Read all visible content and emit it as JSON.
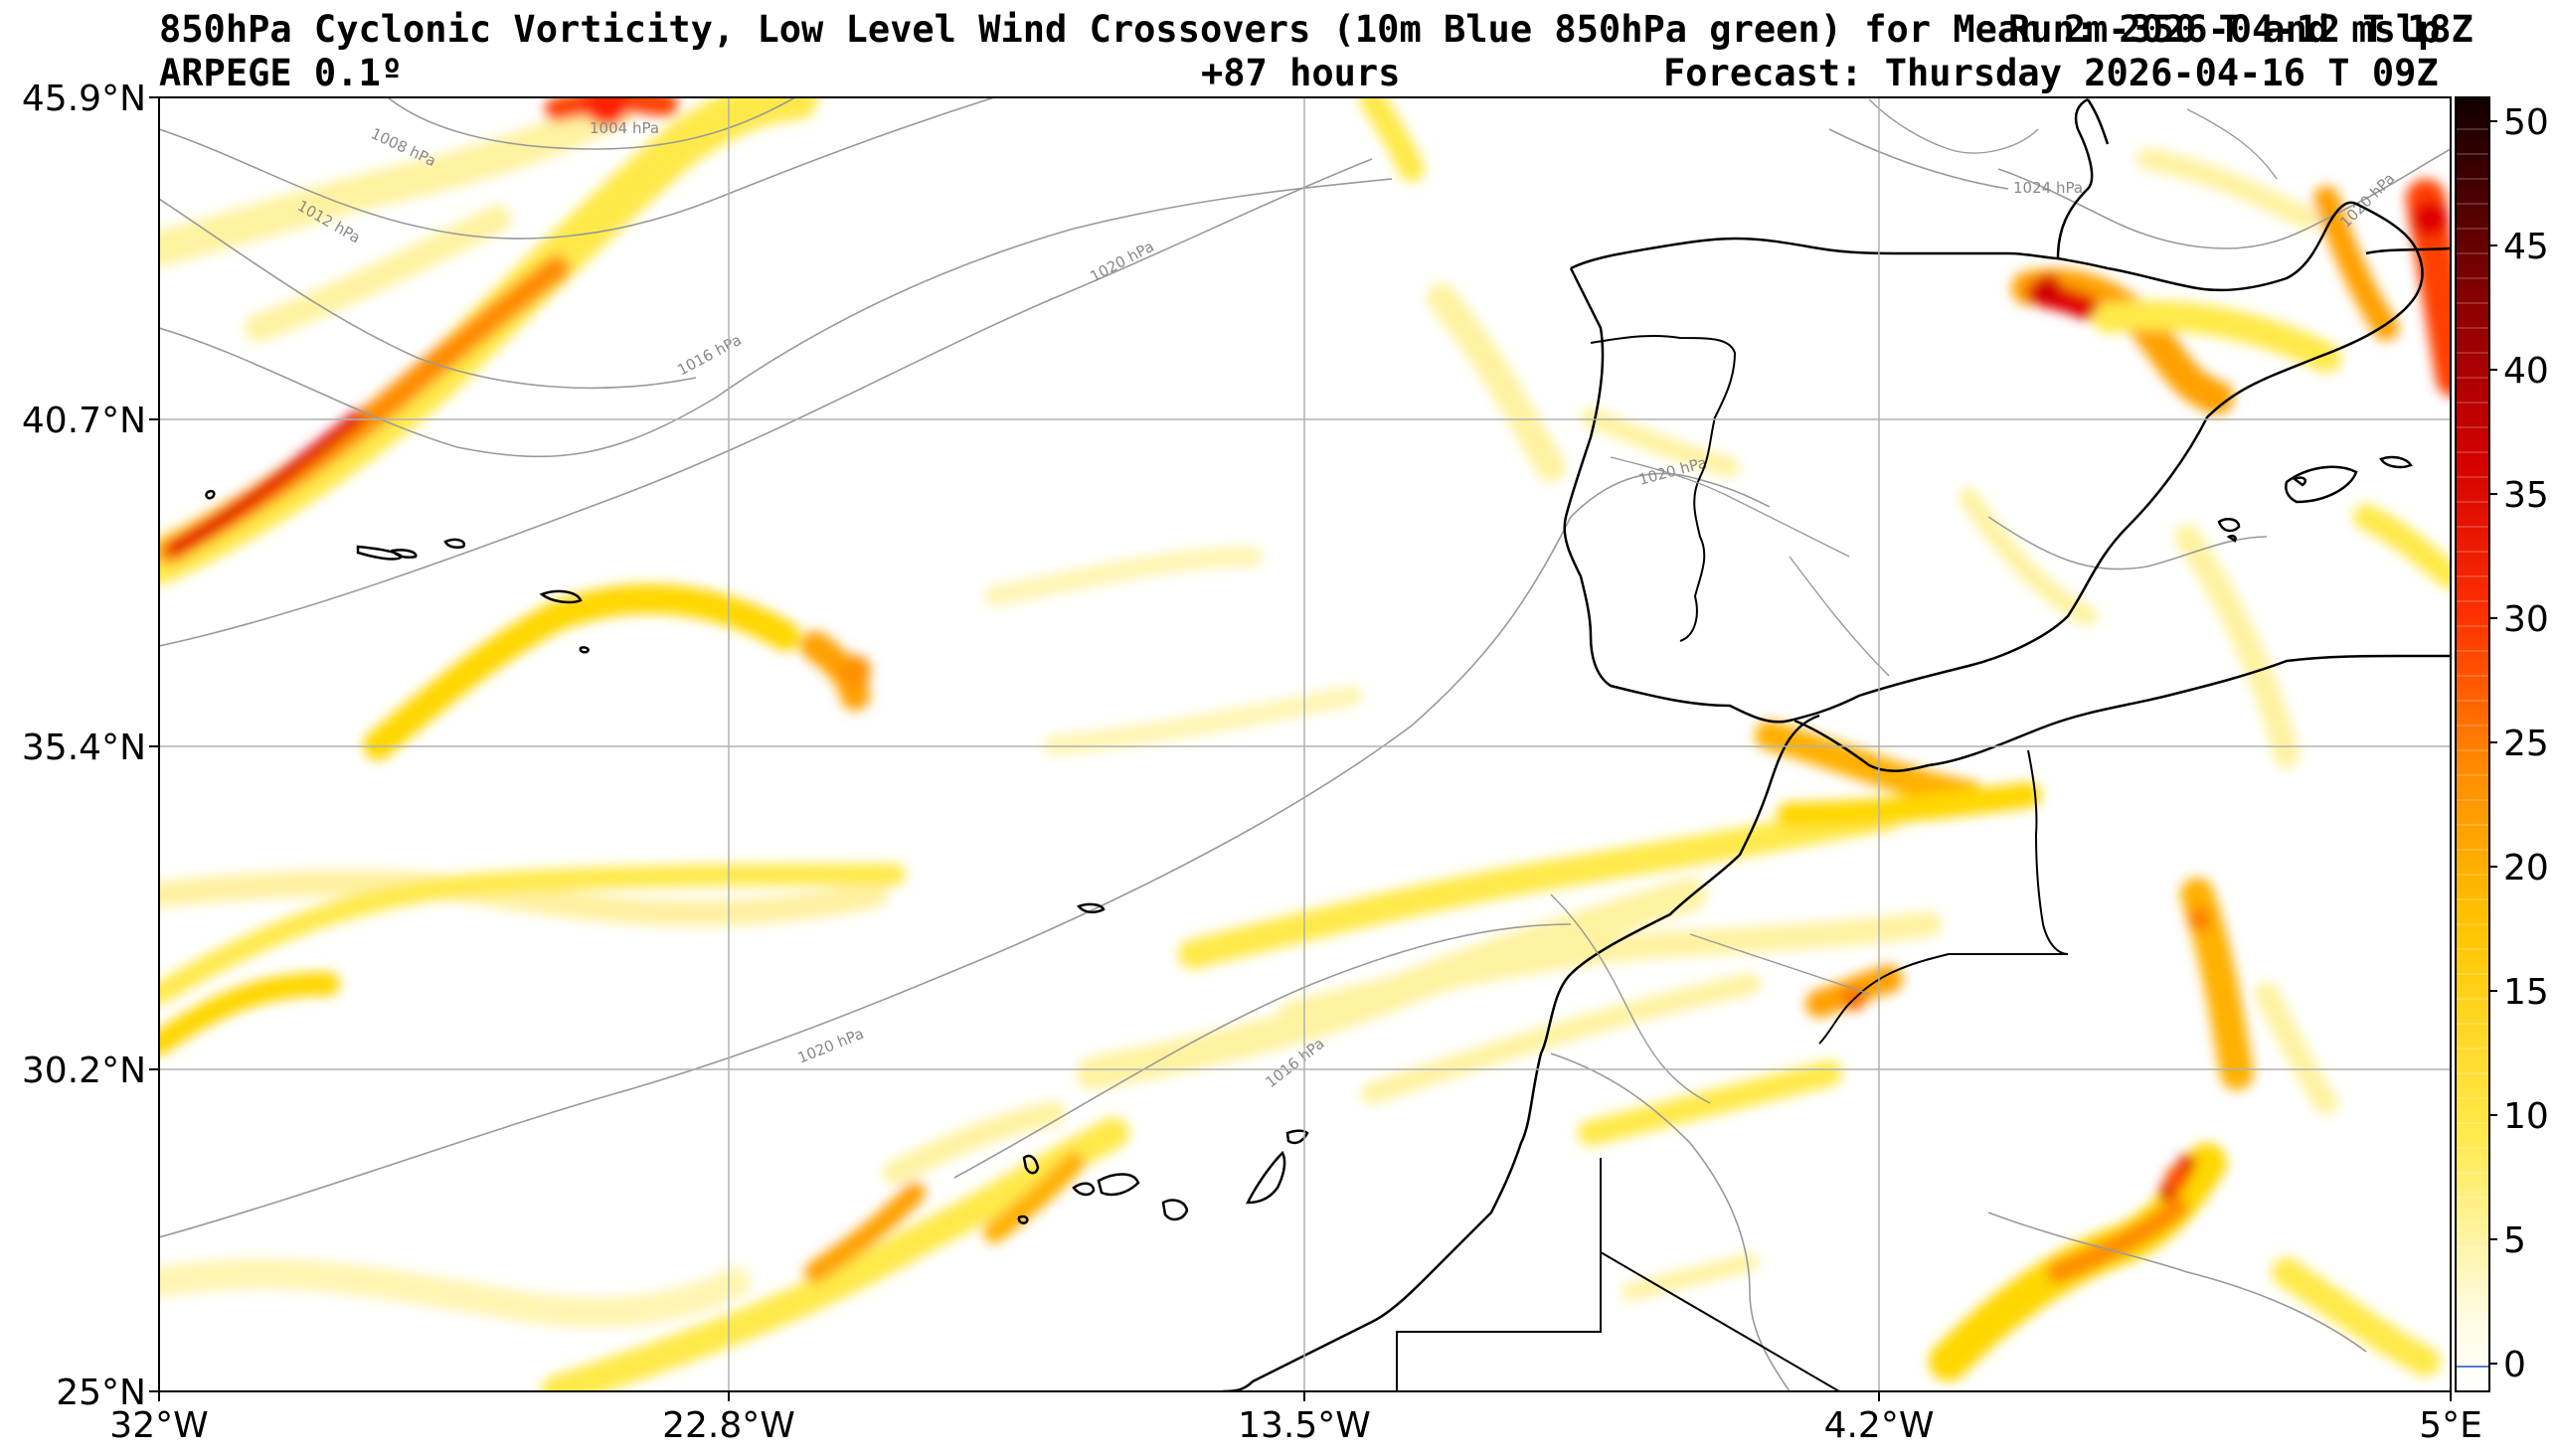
{
  "header": {
    "title_line1": "850hPa Cyclonic Vorticity, Low Level Wind Crossovers (10m Blue 850hPa green) for Mean 2m-350 T and mslp",
    "run_label": "Run: 2026-04-12 T 18Z",
    "model": "ARPEGE 0.1º",
    "lead_time": "+87 hours",
    "forecast_time": "Forecast: Thursday 2026-04-16 T 09Z"
  },
  "map": {
    "lat_ticks": [
      "45.9°N",
      "40.7°N",
      "35.4°N",
      "30.2°N",
      "25°N"
    ],
    "lon_ticks": [
      "32°W",
      "22.8°W",
      "13.5°W",
      "4.2°W",
      "5°E"
    ],
    "isobar_labels": [
      "1004 hPa",
      "1008 hPa",
      "1012 hPa",
      "1016 hPa",
      "1020 hPa",
      "1024 hPa",
      "1020 hPa",
      "1020 hPa",
      "1020 hPa",
      "1016 hPa"
    ],
    "colors": {
      "vorticity_low": "#fff8b0",
      "vorticity_mid": "#ffd700",
      "vorticity_high": "#ff6a00",
      "vorticity_max": "#d40000",
      "coastline": "#000000",
      "isobar": "#999999",
      "grid": "#b0b0b0"
    }
  },
  "colorbar": {
    "ticks": [
      "50",
      "45",
      "40",
      "35",
      "30",
      "25",
      "20",
      "15",
      "10",
      "5",
      "0"
    ]
  }
}
